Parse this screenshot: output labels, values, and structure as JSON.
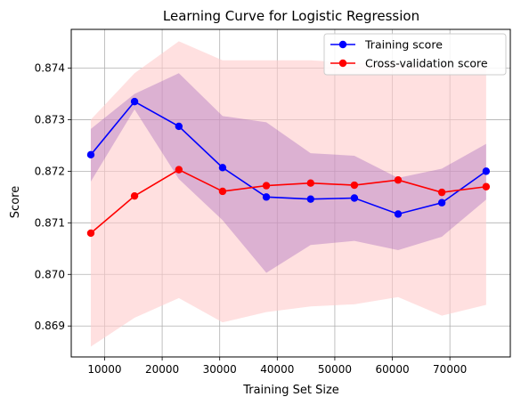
{
  "chart_data": {
    "type": "line",
    "title": "Learning Curve for Logistic Regression",
    "xlabel": "Training Set Size",
    "ylabel": "Score",
    "xlim": [
      4200,
      80500
    ],
    "ylim": [
      0.8684,
      0.87475
    ],
    "xticks": [
      10000,
      20000,
      30000,
      40000,
      50000,
      60000,
      70000
    ],
    "yticks": [
      0.869,
      0.87,
      0.871,
      0.872,
      0.873,
      0.874
    ],
    "xtick_labels": [
      "10000",
      "20000",
      "30000",
      "40000",
      "50000",
      "60000",
      "70000"
    ],
    "ytick_labels": [
      "0.869",
      "0.870",
      "0.871",
      "0.872",
      "0.873",
      "0.874"
    ],
    "grid": true,
    "legend_position": "top-right",
    "x": [
      7600,
      15200,
      22900,
      30500,
      38100,
      45800,
      53400,
      61000,
      68600,
      76300
    ],
    "series": [
      {
        "name": "Training score",
        "color": "#0000ff",
        "band_color": "#9b59b6",
        "values": [
          0.87232,
          0.87335,
          0.87287,
          0.87207,
          0.8715,
          0.87146,
          0.87148,
          0.87117,
          0.87139,
          0.872
        ],
        "band_upper": [
          0.87282,
          0.8735,
          0.8739,
          0.87307,
          0.87295,
          0.87235,
          0.8723,
          0.87187,
          0.87205,
          0.87253
        ],
        "band_lower": [
          0.8718,
          0.8732,
          0.87185,
          0.87105,
          0.87003,
          0.87057,
          0.87065,
          0.87047,
          0.87073,
          0.87145
        ]
      },
      {
        "name": "Cross-validation score",
        "color": "#ff0000",
        "band_color": "#ffcccc",
        "values": [
          0.8708,
          0.87152,
          0.87203,
          0.87161,
          0.87172,
          0.87177,
          0.87173,
          0.87183,
          0.87159,
          0.8717
        ],
        "band_upper": [
          0.873,
          0.8739,
          0.87452,
          0.87415,
          0.87415,
          0.87415,
          0.8741,
          0.8741,
          0.874,
          0.874
        ],
        "band_lower": [
          0.8686,
          0.86916,
          0.86954,
          0.86907,
          0.86927,
          0.86938,
          0.86942,
          0.86956,
          0.8692,
          0.86941
        ]
      }
    ]
  }
}
